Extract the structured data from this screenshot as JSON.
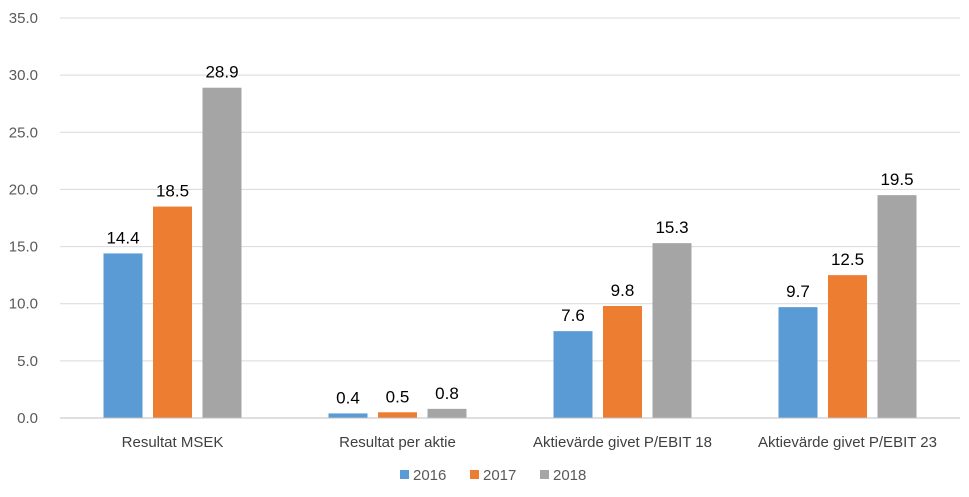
{
  "chart_data": {
    "type": "bar",
    "categories": [
      "Resultat MSEK",
      "Resultat per aktie",
      "Aktievärde givet P/EBIT 18",
      "Aktievärde givet P/EBIT 23"
    ],
    "series": [
      {
        "name": "2016",
        "color": "#5b9bd5",
        "values": [
          14.4,
          0.4,
          7.6,
          9.7
        ]
      },
      {
        "name": "2017",
        "color": "#ed7d31",
        "values": [
          18.5,
          0.5,
          9.8,
          12.5
        ]
      },
      {
        "name": "2018",
        "color": "#a5a5a5",
        "values": [
          28.9,
          0.8,
          15.3,
          19.5
        ]
      }
    ],
    "ylim": [
      0,
      35
    ],
    "yticks": [
      "0.0",
      "5.0",
      "10.0",
      "15.0",
      "20.0",
      "25.0",
      "30.0",
      "35.0"
    ],
    "grid": true,
    "legend": "bottom-center",
    "title": "",
    "xlabel": "",
    "ylabel": ""
  }
}
